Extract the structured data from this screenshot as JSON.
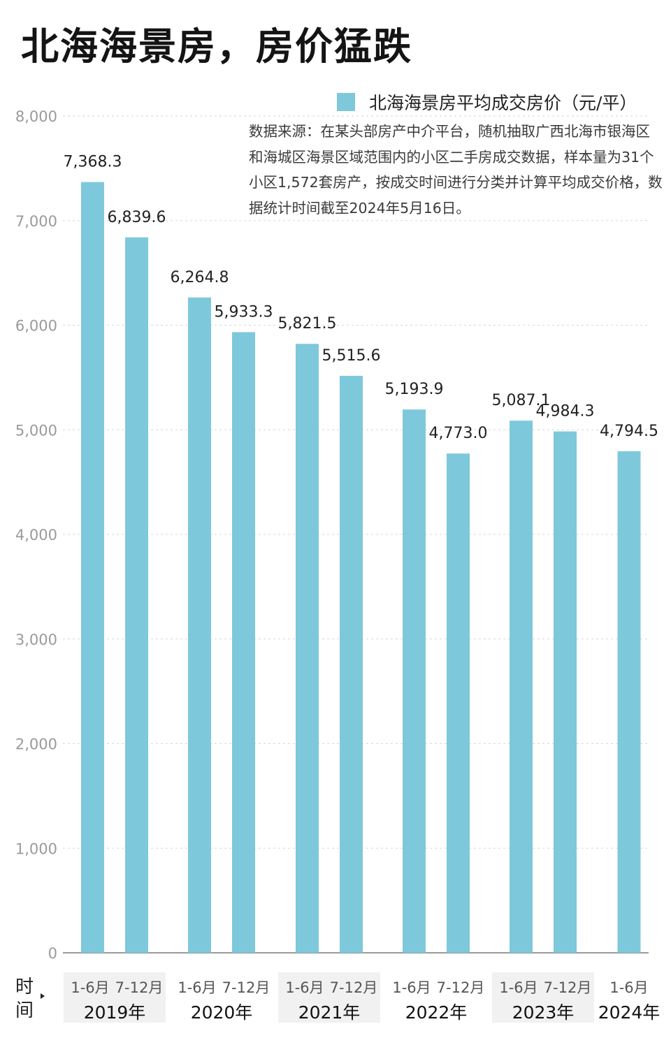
{
  "title": "北海海景房，房价猛跌",
  "legend_label": "北海海景房平均成交房价（元/平）",
  "source_note": "数据来源：在某头部房产中介平台，随机抽取广西北海市银海区和海城区海景区域范围内的小区二手房成交数据，样本量为31个小区1,572套房产，按成交时间进行分类并计算平均成交价格，数据统计时间截至2024年5月16日。",
  "xaxis_title": "时间",
  "colors": {
    "bar": "#7ec8dc",
    "grid": "#d6d6d6",
    "tick": "#9a9a9a",
    "year_band": "#f1f1f1"
  },
  "chart_data": {
    "type": "bar",
    "title": "北海海景房，房价猛跌",
    "series": [
      {
        "name": "北海海景房平均成交房价（元/平）",
        "values": [
          7368.3,
          6839.6,
          6264.8,
          5933.3,
          5821.5,
          5515.6,
          5193.9,
          4773.0,
          5087.1,
          4984.3,
          4794.5
        ]
      }
    ],
    "value_labels": [
      "7,368.3",
      "6,839.6",
      "6,264.8",
      "5,933.3",
      "5,821.5",
      "5,515.6",
      "5,193.9",
      "4,773.0",
      "5,087.1",
      "4,984.3",
      "4,794.5"
    ],
    "categories": [
      "2019年 1-6月",
      "2019年 7-12月",
      "2020年 1-6月",
      "2020年 7-12月",
      "2021年 1-6月",
      "2021年 7-12月",
      "2022年 1-6月",
      "2022年 7-12月",
      "2023年 1-6月",
      "2023年 7-12月",
      "2024年 1-6月"
    ],
    "ylim": [
      0,
      8000
    ],
    "yticks": [
      0,
      1000,
      2000,
      3000,
      4000,
      5000,
      6000,
      7000,
      8000
    ],
    "ytick_labels": [
      "0",
      "1,000",
      "2,000",
      "3,000",
      "4,000",
      "5,000",
      "6,000",
      "7,000",
      "8,000"
    ],
    "grid": true,
    "legend_position": "top-right",
    "groups": [
      {
        "year": "2019年",
        "months": [
          "1-6月",
          "7-12月"
        ],
        "shaded": true
      },
      {
        "year": "2020年",
        "months": [
          "1-6月",
          "7-12月"
        ],
        "shaded": false
      },
      {
        "year": "2021年",
        "months": [
          "1-6月",
          "7-12月"
        ],
        "shaded": true
      },
      {
        "year": "2022年",
        "months": [
          "1-6月",
          "7-12月"
        ],
        "shaded": false
      },
      {
        "year": "2023年",
        "months": [
          "1-6月",
          "7-12月"
        ],
        "shaded": true
      },
      {
        "year": "2024年",
        "months": [
          "1-6月"
        ],
        "shaded": false
      }
    ]
  }
}
